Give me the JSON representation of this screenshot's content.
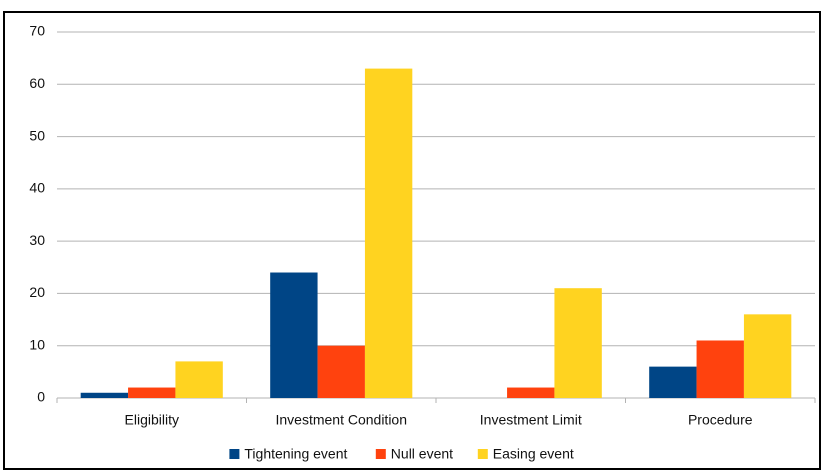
{
  "chart_data": {
    "type": "bar",
    "categories": [
      "Eligibility",
      "Investment Condition",
      "Investment Limit",
      "Procedure"
    ],
    "series": [
      {
        "name": "Tightening event",
        "color": "#004586",
        "values": [
          1,
          24,
          0,
          6
        ]
      },
      {
        "name": "Null event",
        "color": "#ff420e",
        "values": [
          2,
          10,
          2,
          11
        ]
      },
      {
        "name": "Easing event",
        "color": "#ffd320",
        "values": [
          7,
          63,
          21,
          16
        ]
      }
    ],
    "ylim": [
      0,
      70
    ],
    "yticks": [
      0,
      10,
      20,
      30,
      40,
      50,
      60,
      70
    ],
    "grid": true,
    "legend": "bottom"
  }
}
